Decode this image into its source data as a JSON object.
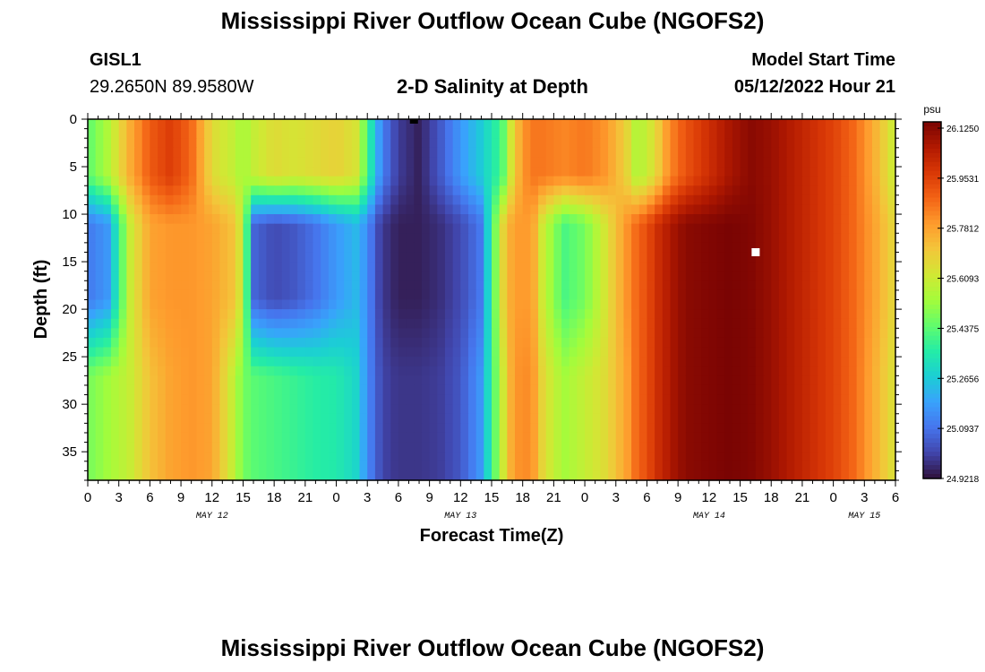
{
  "header": {
    "title": "Mississippi River Outflow Ocean Cube (NGOFS2)",
    "station_id": "GISL1",
    "station_coords": "29.2650N  89.9580W",
    "chart_title": "2-D Salinity at Depth",
    "model_start_label": "Model Start Time",
    "model_start_value": "05/12/2022 Hour 21"
  },
  "footer": {
    "title": "Mississippi River Outflow Ocean Cube (NGOFS2)"
  },
  "chart_data": {
    "type": "heatmap",
    "title": "2-D Salinity at Depth",
    "xlabel": "Forecast Time(Z)",
    "ylabel": "Depth (ft)",
    "x_hours_range": [
      0,
      78
    ],
    "x_tick_labels": [
      "0",
      "3",
      "6",
      "9",
      "12",
      "15",
      "18",
      "21",
      "0",
      "3",
      "6",
      "9",
      "12",
      "15",
      "18",
      "21",
      "0",
      "3",
      "6",
      "9",
      "12",
      "15",
      "18",
      "21",
      "0",
      "3",
      "6"
    ],
    "x_date_labels": [
      {
        "label": "MAY 12",
        "hour": 12
      },
      {
        "label": "MAY 13",
        "hour": 36
      },
      {
        "label": "MAY 14",
        "hour": 60
      },
      {
        "label": "MAY 15",
        "hour": 75
      }
    ],
    "y_ticks": [
      0,
      5,
      10,
      15,
      20,
      25,
      30,
      35
    ],
    "ylim": [
      38,
      0
    ],
    "y_inverted": true,
    "colorbar": {
      "unit": "psu",
      "min": 24.9218,
      "max": 26.125,
      "tick_labels": [
        "26.1250",
        "25.9531",
        "25.7812",
        "25.6093",
        "25.4375",
        "25.2656",
        "25.0937",
        "24.9218"
      ],
      "colors": [
        "#30123b",
        "#4145ab",
        "#4675ed",
        "#39a2fc",
        "#1bcfd4",
        "#24eca6",
        "#61fc6c",
        "#a4fc3b",
        "#d1e834",
        "#f3c63a",
        "#fe9b2d",
        "#f36315",
        "#d93806",
        "#b11901",
        "#7a0403"
      ]
    },
    "markers": [
      {
        "shape": "square",
        "color": "#ffffff",
        "hour": 64.5,
        "depth_ft": 14
      },
      {
        "shape": "square",
        "color": "#000000",
        "hour": 31.5,
        "depth_ft": 0
      }
    ],
    "salinity_profile": {
      "description_of_values": "normalized salinity (0=min, 1=max) by time band and depth; rows = layers surface, mid, deep",
      "time_hours": [
        0,
        2,
        4,
        6,
        8,
        10,
        12,
        14,
        15,
        16,
        18,
        20,
        22,
        24,
        26,
        27,
        28,
        29,
        30,
        32,
        34,
        36,
        38,
        40,
        41,
        42,
        43,
        44,
        46,
        48,
        50,
        52,
        53,
        54,
        55,
        56,
        57,
        58,
        60,
        62,
        64,
        66,
        68,
        70,
        72,
        74,
        76,
        78
      ],
      "surface": [
        0.42,
        0.52,
        0.68,
        0.8,
        0.85,
        0.78,
        0.6,
        0.55,
        0.5,
        0.55,
        0.6,
        0.58,
        0.6,
        0.62,
        0.58,
        0.4,
        0.22,
        0.12,
        0.06,
        0.02,
        0.1,
        0.2,
        0.28,
        0.4,
        0.6,
        0.72,
        0.76,
        0.76,
        0.74,
        0.76,
        0.72,
        0.62,
        0.52,
        0.55,
        0.62,
        0.72,
        0.78,
        0.82,
        0.88,
        0.94,
        0.98,
        0.96,
        0.92,
        0.88,
        0.84,
        0.78,
        0.68,
        0.55
      ],
      "mid": [
        0.15,
        0.2,
        0.55,
        0.7,
        0.72,
        0.72,
        0.7,
        0.65,
        0.55,
        0.12,
        0.08,
        0.1,
        0.14,
        0.2,
        0.25,
        0.18,
        0.08,
        0.04,
        0.02,
        0.02,
        0.04,
        0.08,
        0.15,
        0.6,
        0.7,
        0.72,
        0.7,
        0.55,
        0.4,
        0.45,
        0.58,
        0.72,
        0.78,
        0.82,
        0.88,
        0.92,
        0.96,
        0.98,
        0.99,
        1.0,
        0.99,
        0.96,
        0.92,
        0.88,
        0.84,
        0.78,
        0.7,
        0.6
      ],
      "deep": [
        0.45,
        0.5,
        0.55,
        0.65,
        0.7,
        0.72,
        0.7,
        0.55,
        0.45,
        0.42,
        0.4,
        0.38,
        0.36,
        0.35,
        0.3,
        0.18,
        0.1,
        0.06,
        0.05,
        0.05,
        0.06,
        0.1,
        0.2,
        0.55,
        0.7,
        0.74,
        0.72,
        0.6,
        0.5,
        0.55,
        0.6,
        0.7,
        0.78,
        0.82,
        0.88,
        0.92,
        0.96,
        0.98,
        0.99,
        1.0,
        0.99,
        0.96,
        0.92,
        0.88,
        0.84,
        0.78,
        0.68,
        0.58
      ]
    }
  }
}
